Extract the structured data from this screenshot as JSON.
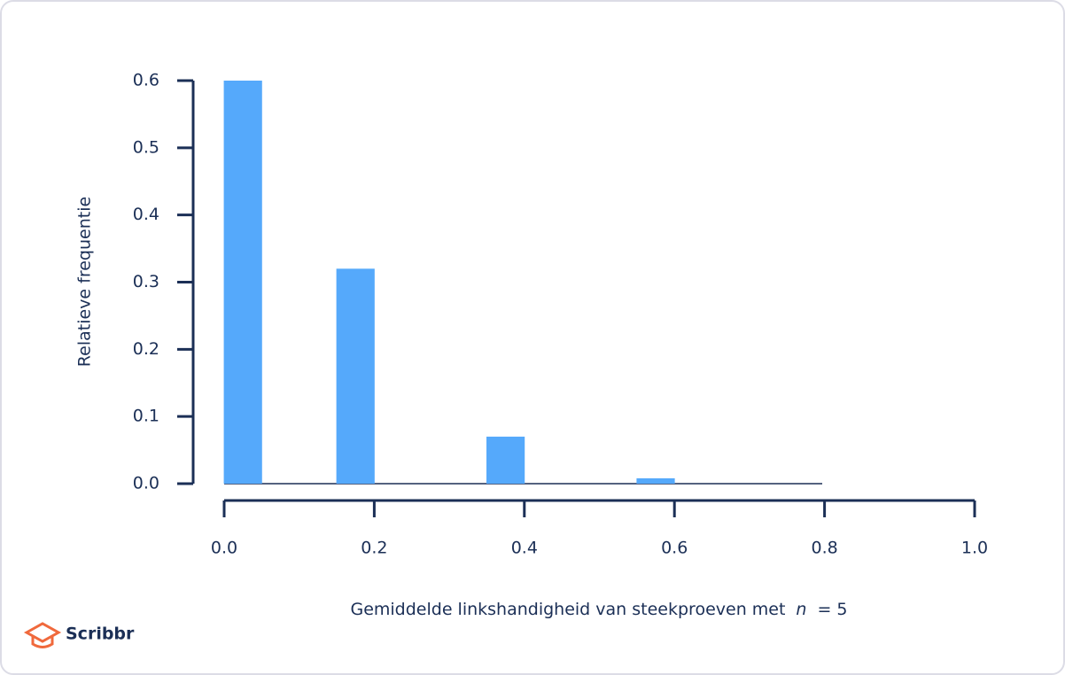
{
  "chart_data": {
    "type": "bar",
    "y_label": "Relatieve frequentie",
    "x_label": [
      "Gemiddelde linkshandigheid van steekproeven met",
      "n",
      "= 5"
    ],
    "x": [
      0.025,
      0.175,
      0.375,
      0.575
    ],
    "values": [
      0.6,
      0.32,
      0.07,
      0.008
    ],
    "color": "#55a9fb",
    "xlim": [
      0,
      1
    ],
    "xticks": [
      {
        "value": 0,
        "label": "0.0"
      },
      0.2,
      0.4,
      0.6,
      0.8,
      {
        "value": 1,
        "label": "1.0"
      }
    ],
    "ylim": [
      0,
      0.6
    ],
    "yticks": [
      {
        "value": 0,
        "label": "0.0"
      },
      0.1,
      0.2,
      0.3,
      0.4,
      0.5,
      0.6
    ]
  },
  "logo": "Scribbr"
}
